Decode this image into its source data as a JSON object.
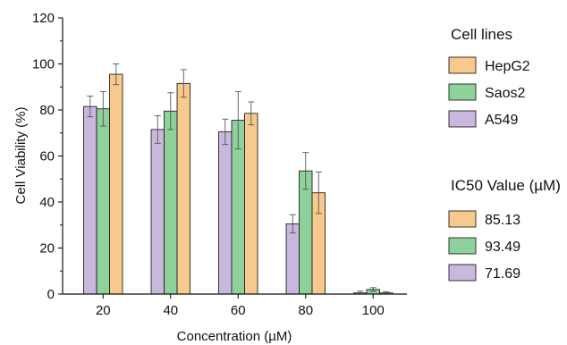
{
  "chart_data": {
    "type": "bar",
    "xlabel": "Concentration (µM)",
    "ylabel": "Cell Viability (%)",
    "categories": [
      "20",
      "40",
      "60",
      "80",
      "100"
    ],
    "ylim": [
      0,
      120
    ],
    "yticks": [
      "0",
      "20",
      "40",
      "60",
      "80",
      "100",
      "120"
    ],
    "grid": false,
    "series": [
      {
        "name": "A549",
        "color": "#c9b8dd",
        "values": [
          81.5,
          71.5,
          70.5,
          30.5,
          0.5
        ],
        "errors": [
          4.5,
          6,
          5.5,
          4,
          0.8
        ]
      },
      {
        "name": "Saos2",
        "color": "#8fd19a",
        "values": [
          80.5,
          79.5,
          75.5,
          53.5,
          2.0
        ],
        "errors": [
          7.5,
          8,
          12.5,
          8,
          0.8
        ]
      },
      {
        "name": "HepG2",
        "color": "#f8c98c",
        "values": [
          95.5,
          91.5,
          78.5,
          44,
          0.5
        ],
        "errors": [
          4.5,
          6,
          5,
          9,
          0.5
        ]
      }
    ],
    "legend": {
      "placement": "right",
      "title": "Cell lines",
      "items": [
        {
          "label": "HepG2",
          "color": "#f8c98c"
        },
        {
          "label": "Saos2",
          "color": "#8fd19a"
        },
        {
          "label": "A549",
          "color": "#c9b8dd"
        }
      ]
    },
    "ic50_legend": {
      "title": "IC50 Value (µM)",
      "items": [
        {
          "label": "85.13",
          "color": "#f8c98c"
        },
        {
          "label": "93.49",
          "color": "#8fd19a"
        },
        {
          "label": "71.69",
          "color": "#c9b8dd"
        }
      ]
    }
  }
}
